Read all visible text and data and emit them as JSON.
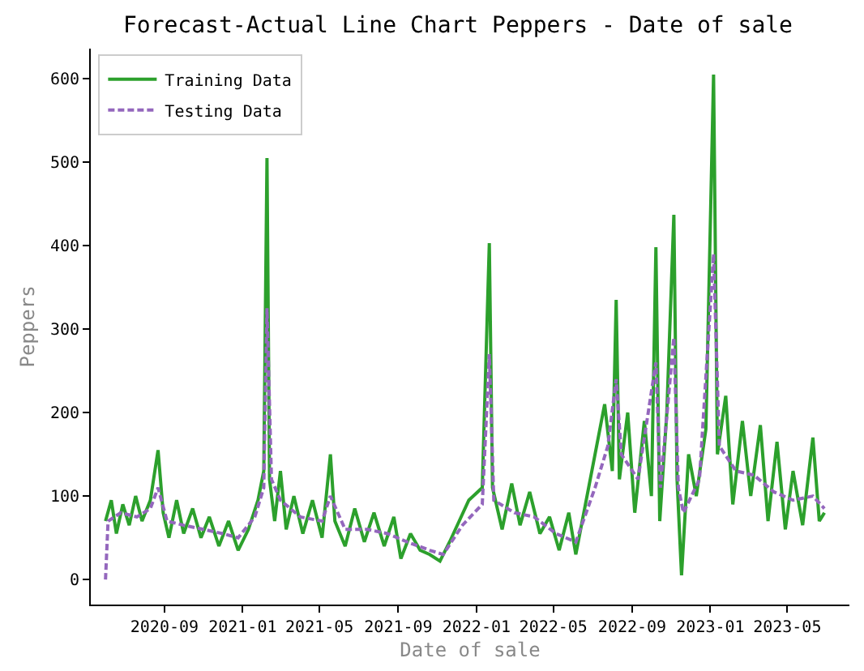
{
  "chart_data": {
    "type": "line",
    "title": "Forecast-Actual Line Chart Peppers - Date of sale",
    "xlabel": "Date of sale",
    "ylabel": "Peppers",
    "xlim": [
      "2020-05-09",
      "2023-08-06"
    ],
    "xticks": [
      {
        "value": "2020-09-01",
        "label": "2020-09"
      },
      {
        "value": "2021-01-01",
        "label": "2021-01"
      },
      {
        "value": "2021-05-01",
        "label": "2021-05"
      },
      {
        "value": "2021-09-01",
        "label": "2021-09"
      },
      {
        "value": "2022-01-01",
        "label": "2022-01"
      },
      {
        "value": "2022-05-01",
        "label": "2022-05"
      },
      {
        "value": "2022-09-01",
        "label": "2022-09"
      },
      {
        "value": "2023-01-01",
        "label": "2023-01"
      },
      {
        "value": "2023-05-01",
        "label": "2023-05"
      }
    ],
    "ylim": [
      -30,
      636
    ],
    "yticks": [
      0,
      100,
      200,
      300,
      400,
      500,
      600
    ],
    "grid": false,
    "legend": "top left",
    "series": [
      {
        "name": "Training Data",
        "color": "#2ca02c",
        "line_style": "solid",
        "x": [
          "2020-06-01",
          "2020-06-10",
          "2020-06-18",
          "2020-06-28",
          "2020-07-08",
          "2020-07-18",
          "2020-07-28",
          "2020-08-10",
          "2020-08-22",
          "2020-08-30",
          "2020-09-08",
          "2020-09-20",
          "2020-10-01",
          "2020-10-15",
          "2020-10-28",
          "2020-11-10",
          "2020-11-25",
          "2020-12-10",
          "2020-12-25",
          "2021-01-10",
          "2021-01-25",
          "2021-02-03",
          "2021-02-08",
          "2021-02-12",
          "2021-02-20",
          "2021-03-01",
          "2021-03-10",
          "2021-03-22",
          "2021-04-05",
          "2021-04-20",
          "2021-05-05",
          "2021-05-18",
          "2021-05-25",
          "2021-06-10",
          "2021-06-25",
          "2021-07-10",
          "2021-07-25",
          "2021-08-10",
          "2021-08-25",
          "2021-09-05",
          "2021-09-20",
          "2021-10-05",
          "2021-10-20",
          "2021-11-05",
          "2021-11-20",
          "2021-12-05",
          "2021-12-20",
          "2022-01-10",
          "2022-01-21",
          "2022-01-26",
          "2022-02-10",
          "2022-02-25",
          "2022-03-10",
          "2022-03-25",
          "2022-04-10",
          "2022-04-25",
          "2022-05-10",
          "2022-05-25",
          "2022-06-05",
          "2022-06-20",
          "2022-07-05",
          "2022-07-20",
          "2022-08-01",
          "2022-08-07",
          "2022-08-12",
          "2022-08-25",
          "2022-09-05",
          "2022-09-20",
          "2022-10-01",
          "2022-10-08",
          "2022-10-14",
          "2022-10-25",
          "2022-11-05",
          "2022-11-10",
          "2022-11-17",
          "2022-11-28",
          "2022-12-10",
          "2022-12-25",
          "2023-01-06",
          "2023-01-12",
          "2023-01-25",
          "2023-02-05",
          "2023-02-20",
          "2023-03-05",
          "2023-03-20",
          "2023-04-01",
          "2023-04-15",
          "2023-04-28",
          "2023-05-10",
          "2023-05-25",
          "2023-06-10",
          "2023-06-20",
          "2023-06-28"
        ],
        "values": [
          70,
          95,
          55,
          90,
          65,
          100,
          70,
          95,
          155,
          80,
          50,
          95,
          55,
          85,
          50,
          75,
          40,
          70,
          35,
          60,
          95,
          130,
          505,
          120,
          70,
          130,
          60,
          100,
          55,
          95,
          50,
          150,
          70,
          40,
          85,
          45,
          80,
          40,
          75,
          25,
          55,
          35,
          30,
          22,
          45,
          70,
          95,
          110,
          403,
          110,
          60,
          115,
          65,
          105,
          55,
          75,
          35,
          80,
          30,
          90,
          150,
          210,
          130,
          335,
          120,
          200,
          80,
          190,
          100,
          398,
          70,
          200,
          437,
          120,
          5,
          150,
          100,
          180,
          605,
          150,
          220,
          90,
          190,
          100,
          185,
          70,
          165,
          60,
          130,
          65,
          170,
          70,
          80
        ]
      },
      {
        "name": "Testing Data",
        "color": "#9467bd",
        "line_style": "dashed",
        "x": [
          "2020-06-01",
          "2020-06-05",
          "2020-06-25",
          "2020-07-20",
          "2020-08-10",
          "2020-08-22",
          "2020-09-05",
          "2020-10-01",
          "2020-11-01",
          "2020-12-01",
          "2020-12-25",
          "2021-01-20",
          "2021-02-03",
          "2021-02-08",
          "2021-02-15",
          "2021-03-01",
          "2021-04-01",
          "2021-05-05",
          "2021-05-18",
          "2021-06-10",
          "2021-07-15",
          "2021-08-15",
          "2021-09-15",
          "2021-10-20",
          "2021-11-10",
          "2021-12-10",
          "2022-01-10",
          "2022-01-21",
          "2022-01-28",
          "2022-03-01",
          "2022-04-01",
          "2022-05-05",
          "2022-06-05",
          "2022-07-05",
          "2022-07-25",
          "2022-08-07",
          "2022-08-15",
          "2022-09-10",
          "2022-10-08",
          "2022-10-15",
          "2022-11-05",
          "2022-11-12",
          "2022-11-20",
          "2022-12-15",
          "2023-01-06",
          "2023-01-15",
          "2023-02-10",
          "2023-03-10",
          "2023-04-10",
          "2023-05-10",
          "2023-06-10",
          "2023-06-28"
        ],
        "values": [
          0,
          70,
          80,
          75,
          85,
          110,
          70,
          65,
          60,
          55,
          50,
          75,
          110,
          325,
          120,
          95,
          75,
          70,
          100,
          60,
          60,
          55,
          45,
          35,
          30,
          65,
          90,
          270,
          95,
          80,
          75,
          55,
          45,
          110,
          160,
          240,
          150,
          120,
          260,
          110,
          290,
          110,
          80,
          120,
          390,
          160,
          130,
          125,
          105,
          95,
          100,
          85
        ]
      }
    ]
  }
}
